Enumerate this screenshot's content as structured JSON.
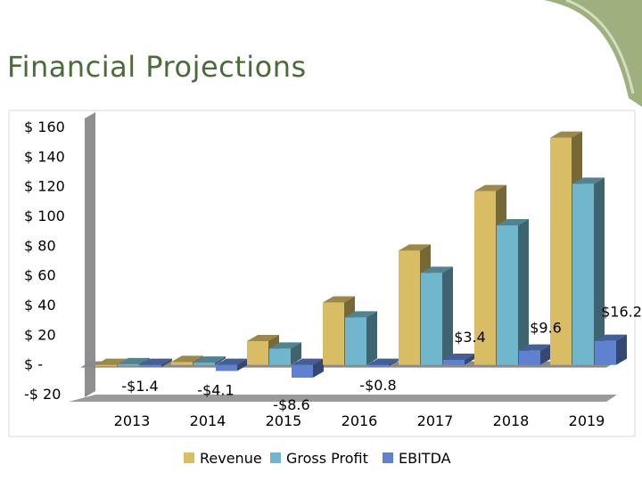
{
  "header": {
    "title": "Financial Projections"
  },
  "chart_data": {
    "type": "bar",
    "title": "",
    "xlabel": "",
    "ylabel": "",
    "categories": [
      "2013",
      "2014",
      "2015",
      "2016",
      "2017",
      "2018",
      "2019"
    ],
    "y_ticks": [
      "$ 160",
      "$ 140",
      "$ 120",
      "$ 100",
      "$ 80",
      "$ 60",
      "$ 40",
      "$ 20",
      "$ -",
      "-$ 20"
    ],
    "ylim": [
      -20,
      160
    ],
    "grid": false,
    "legend_position": "bottom",
    "series": [
      {
        "name": "Revenue",
        "color": "#d9bd64",
        "values": [
          0,
          2,
          16,
          42,
          77,
          117,
          153
        ]
      },
      {
        "name": "Gross Profit",
        "color": "#70b6cc",
        "values": [
          0.5,
          1.5,
          11,
          32,
          62,
          94,
          122
        ]
      },
      {
        "name": "EBITDA",
        "color": "#5e82d0",
        "values": [
          -1.4,
          -4.1,
          -8.6,
          -0.8,
          3.4,
          9.6,
          16.2
        ]
      }
    ],
    "data_labels": [
      "-$1.4",
      "-$4.1",
      "-$8.6",
      "-$0.8",
      "$3.4",
      "$9.6",
      "$16.2"
    ]
  }
}
